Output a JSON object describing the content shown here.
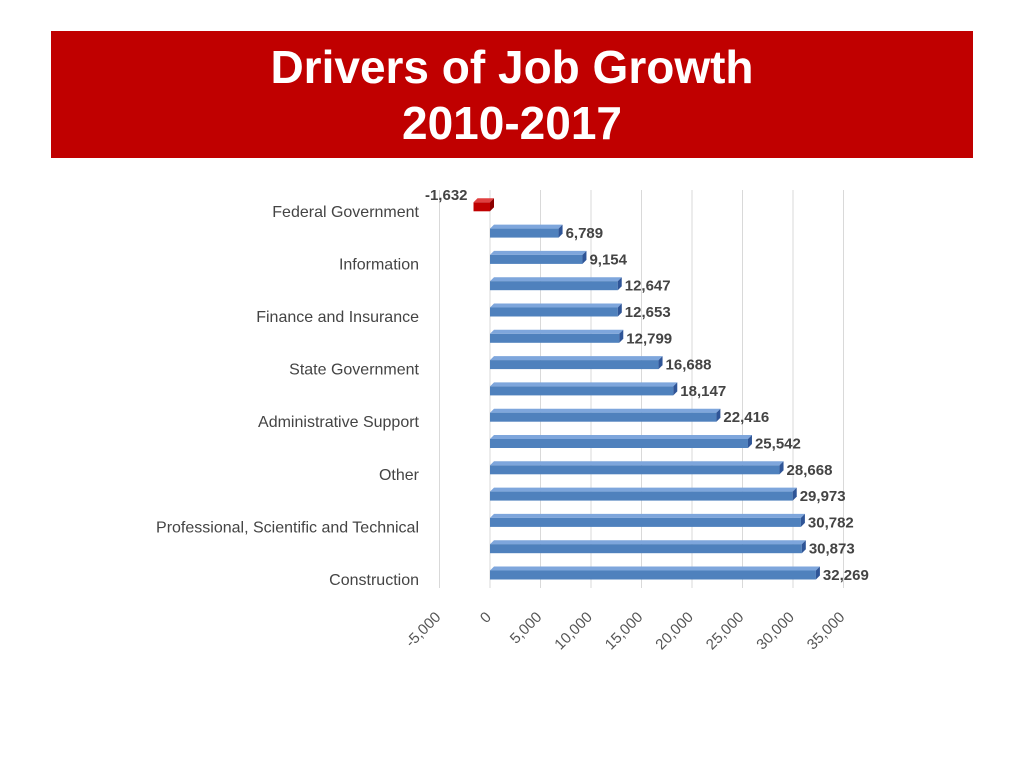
{
  "title": {
    "line1": "Drivers of Job Growth",
    "line2": "2010-2017"
  },
  "chart_data": {
    "type": "bar",
    "orientation": "horizontal",
    "categories": [
      "Construction",
      "",
      "Professional, Scientific and Technical",
      "",
      "Other",
      "",
      "Administrative Support",
      "",
      "State Government",
      "",
      "Finance and Insurance",
      "",
      "Information",
      "",
      "Federal Government"
    ],
    "values": [
      32269,
      30873,
      30782,
      29973,
      28668,
      25542,
      22416,
      18147,
      16688,
      12799,
      12653,
      12647,
      9154,
      6789,
      -1632
    ],
    "value_labels": [
      "32,269",
      "30,873",
      "30,782",
      "29,973",
      "28,668",
      "25,542",
      "22,416",
      "18,147",
      "16,688",
      "12,799",
      "12,653",
      "12,647",
      "9,154",
      "6,789",
      "-1,632"
    ],
    "xlim": [
      -5000,
      35000
    ],
    "xticks": [
      -5000,
      0,
      5000,
      10000,
      15000,
      20000,
      25000,
      30000,
      35000
    ],
    "xtick_labels": [
      "-5,000",
      "0",
      "5,000",
      "10,000",
      "15,000",
      "20,000",
      "25,000",
      "30,000",
      "35,000"
    ],
    "grid": true,
    "colors": {
      "positive": "#4f81bd",
      "negative": "#c00000",
      "title_bg": "#c00000"
    }
  }
}
